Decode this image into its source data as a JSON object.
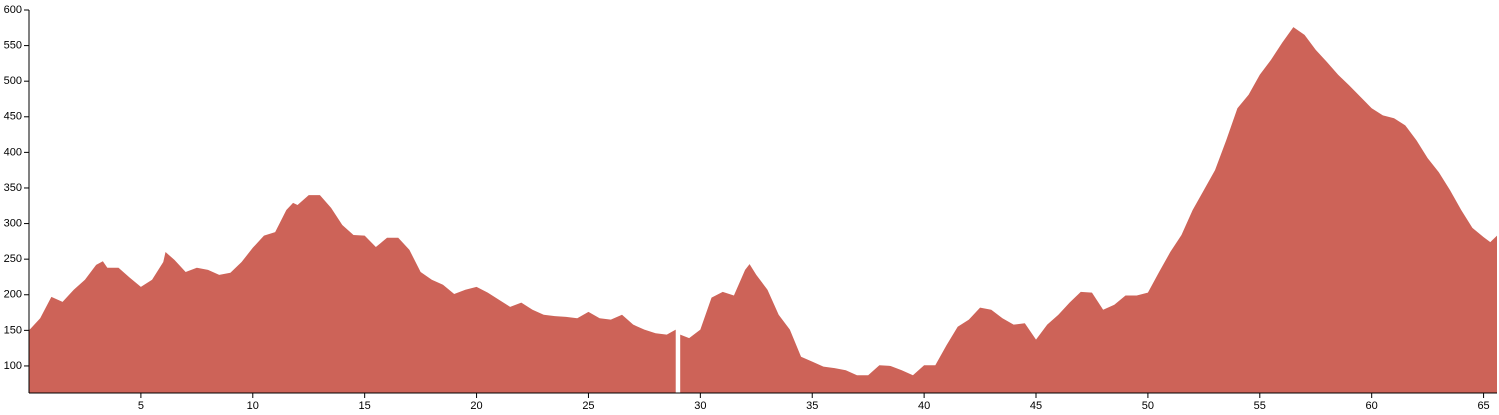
{
  "chart_data": {
    "type": "area",
    "color": "#cd6358",
    "x": [
      0,
      0.5,
      1,
      1.5,
      2,
      2.5,
      3,
      3.3,
      3.5,
      4,
      4.5,
      5,
      5.5,
      6,
      6.1,
      6.5,
      7,
      7.5,
      8,
      8.5,
      9,
      9.5,
      10,
      10.5,
      11,
      11.5,
      11.8,
      12,
      12.5,
      13,
      13.5,
      14,
      14.5,
      15,
      15.5,
      16,
      16.5,
      17,
      17.5,
      18,
      18.5,
      19,
      19.5,
      20,
      20.5,
      21,
      21.5,
      22,
      22.5,
      23,
      23.5,
      24,
      24.5,
      25,
      25.5,
      26,
      26.5,
      27,
      27.5,
      28,
      28.5,
      28.9,
      29,
      29.1,
      29.5,
      30,
      30.5,
      31,
      31.5,
      32,
      32.2,
      32.5,
      33,
      33.5,
      34,
      34.5,
      35,
      35.5,
      36,
      36.5,
      37,
      37.5,
      38,
      38.5,
      39,
      39.5,
      40,
      40.5,
      41,
      41.5,
      42,
      42.5,
      43,
      43.5,
      44,
      44.5,
      45,
      45.5,
      46,
      46.5,
      47,
      47.5,
      48,
      48.5,
      49,
      49.5,
      50,
      50.5,
      51,
      51.5,
      52,
      52.5,
      53,
      53.5,
      54,
      54.5,
      55,
      55.5,
      56,
      56.5,
      57,
      57.5,
      58,
      58.5,
      59,
      59.5,
      60,
      60.5,
      61,
      61.5,
      62,
      62.5,
      63,
      63.5,
      64,
      64.5,
      65,
      65.3,
      65.6
    ],
    "values": [
      150,
      167,
      197,
      190,
      207,
      221,
      242,
      247,
      238,
      238,
      224,
      211,
      221,
      246,
      260,
      249,
      232,
      238,
      235,
      228,
      231,
      246,
      266,
      283,
      288,
      319,
      329,
      326,
      340,
      340,
      322,
      298,
      284,
      283,
      267,
      280,
      280,
      263,
      232,
      221,
      214,
      201,
      207,
      211,
      203,
      193,
      183,
      189,
      179,
      172,
      170,
      169,
      167,
      176,
      167,
      165,
      172,
      158,
      151,
      146,
      144,
      151,
      null,
      144,
      139,
      151,
      196,
      204,
      199,
      235,
      243,
      228,
      207,
      172,
      151,
      113,
      106,
      99,
      97,
      94,
      87,
      87,
      101,
      100,
      94,
      87,
      101,
      101,
      129,
      155,
      165,
      182,
      179,
      167,
      158,
      160,
      137,
      158,
      172,
      189,
      204,
      203,
      179,
      186,
      199,
      199,
      203,
      232,
      260,
      284,
      319,
      347,
      375,
      417,
      462,
      481,
      509,
      530,
      554,
      576,
      565,
      544,
      527,
      509,
      494,
      478,
      462,
      452,
      448,
      438,
      417,
      392,
      372,
      347,
      319,
      294,
      281,
      274,
      283
    ],
    "xlim": [
      0,
      65.6
    ],
    "ylim": [
      62,
      600
    ],
    "xticks": [
      5,
      10,
      15,
      20,
      25,
      30,
      35,
      40,
      45,
      50,
      55,
      60,
      65
    ],
    "yticks": [
      100,
      150,
      200,
      250,
      300,
      350,
      400,
      450,
      500,
      550,
      600
    ]
  }
}
